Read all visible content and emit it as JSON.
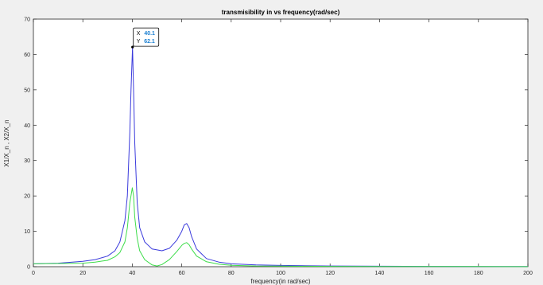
{
  "chart_data": {
    "type": "line",
    "title": "transmisibility in vs frequency(rad/sec)",
    "xlabel": "frequency(in rad/sec)",
    "ylabel": "X1/X_n , X2/X_n",
    "xlim": [
      0,
      200
    ],
    "ylim": [
      0,
      70
    ],
    "xticks": [
      0,
      20,
      40,
      60,
      80,
      100,
      120,
      140,
      160,
      180,
      200
    ],
    "yticks": [
      0,
      10,
      20,
      30,
      40,
      50,
      60,
      70
    ],
    "grid": false,
    "series": [
      {
        "color": "#3a3adc",
        "x": [
          0,
          10,
          20,
          25,
          30,
          33,
          35,
          37,
          38,
          39,
          39.5,
          40.1,
          40.5,
          41,
          42,
          43,
          45,
          48,
          52,
          55,
          58,
          60,
          61,
          62,
          63,
          64,
          66,
          70,
          75,
          80,
          90,
          100,
          120,
          140,
          160,
          180,
          200
        ],
        "y": [
          0.8,
          1.0,
          1.5,
          2.0,
          3.0,
          4.5,
          7.0,
          13.0,
          20.0,
          38.0,
          50.0,
          62.1,
          50.0,
          35.0,
          18.0,
          11.0,
          7.0,
          5.0,
          4.5,
          5.2,
          7.5,
          10.0,
          11.8,
          12.2,
          11.0,
          8.5,
          5.0,
          2.3,
          1.3,
          0.8,
          0.5,
          0.35,
          0.2,
          0.13,
          0.09,
          0.07,
          0.05
        ]
      },
      {
        "color": "#3ddc4a",
        "x": [
          0,
          10,
          20,
          25,
          30,
          33,
          35,
          37,
          38,
          39,
          40,
          40.5,
          41,
          42,
          43,
          45,
          48,
          50,
          52,
          55,
          58,
          60,
          61,
          62,
          63,
          64,
          66,
          70,
          75,
          80,
          90,
          100,
          120,
          140,
          160,
          180,
          200
        ],
        "y": [
          0.8,
          0.9,
          1.0,
          1.3,
          1.8,
          2.8,
          4.0,
          7.0,
          11.0,
          18.0,
          22.3,
          20.0,
          14.0,
          8.0,
          4.5,
          2.0,
          0.5,
          0.2,
          0.6,
          2.0,
          4.3,
          6.0,
          6.6,
          6.8,
          6.2,
          5.0,
          3.0,
          1.4,
          0.7,
          0.4,
          0.2,
          0.15,
          0.1,
          0.07,
          0.05,
          0.04,
          0.03
        ]
      }
    ],
    "datatip": {
      "x_label": "X",
      "x_value": "40.1",
      "y_label": "Y",
      "y_value": "62.1",
      "x": 40.1,
      "y": 62.1
    }
  }
}
